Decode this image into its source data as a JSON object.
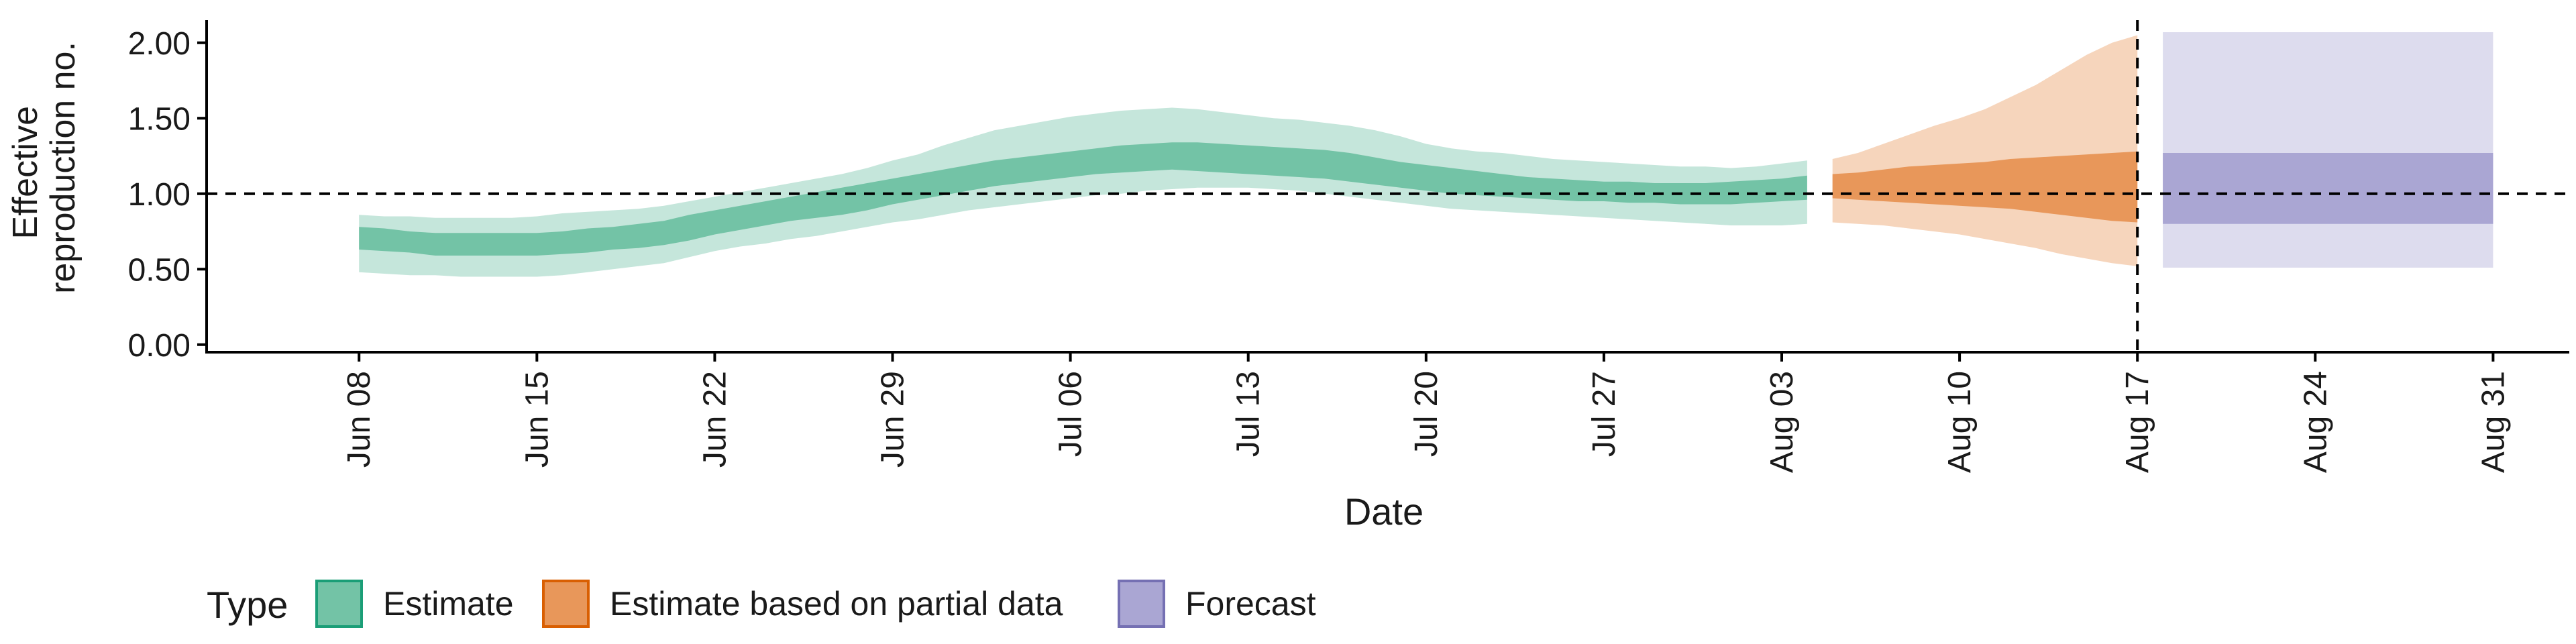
{
  "chart_data": {
    "type": "area",
    "ylabel_lines": [
      "Effective",
      "reproduction no."
    ],
    "xlabel": "Date",
    "ylim": [
      -0.05,
      2.15
    ],
    "yticks": [
      0.0,
      0.5,
      1.0,
      1.5,
      2.0
    ],
    "ytick_labels": [
      "0.00",
      "0.50",
      "1.00",
      "1.50",
      "2.00"
    ],
    "xlim": [
      "2020-06-02",
      "2020-09-03"
    ],
    "xticks": [
      "2020-06-08",
      "2020-06-15",
      "2020-06-22",
      "2020-06-29",
      "2020-07-06",
      "2020-07-13",
      "2020-07-20",
      "2020-07-27",
      "2020-08-03",
      "2020-08-10",
      "2020-08-17",
      "2020-08-24",
      "2020-08-31"
    ],
    "xtick_labels": [
      "Jun 08",
      "Jun 15",
      "Jun 22",
      "Jun 29",
      "Jul 06",
      "Jul 13",
      "Jul 20",
      "Jul 27",
      "Aug 03",
      "Aug 10",
      "Aug 17",
      "Aug 24",
      "Aug 31"
    ],
    "reference_line_y": 1.0,
    "reference_line_x": "2020-08-17",
    "legend": {
      "title": "Type",
      "position": "bottom"
    },
    "colors": {
      "estimate_outer": "#c5e6db",
      "estimate_inner": "#73c3a6",
      "partial_outer": "#f6d5bc",
      "partial_inner": "#e8975a",
      "forecast_outer": "#dddcee",
      "forecast_inner": "#aaa6d3",
      "estimate_key_border": "#1b9e77",
      "partial_key_border": "#d95f02",
      "forecast_key_border": "#7570b3"
    },
    "series": [
      {
        "name": "Estimate",
        "x": [
          "2020-06-08",
          "2020-06-09",
          "2020-06-10",
          "2020-06-11",
          "2020-06-12",
          "2020-06-13",
          "2020-06-14",
          "2020-06-15",
          "2020-06-16",
          "2020-06-17",
          "2020-06-18",
          "2020-06-19",
          "2020-06-20",
          "2020-06-21",
          "2020-06-22",
          "2020-06-23",
          "2020-06-24",
          "2020-06-25",
          "2020-06-26",
          "2020-06-27",
          "2020-06-28",
          "2020-06-29",
          "2020-06-30",
          "2020-07-01",
          "2020-07-02",
          "2020-07-03",
          "2020-07-04",
          "2020-07-05",
          "2020-07-06",
          "2020-07-07",
          "2020-07-08",
          "2020-07-09",
          "2020-07-10",
          "2020-07-11",
          "2020-07-12",
          "2020-07-13",
          "2020-07-14",
          "2020-07-15",
          "2020-07-16",
          "2020-07-17",
          "2020-07-18",
          "2020-07-19",
          "2020-07-20",
          "2020-07-21",
          "2020-07-22",
          "2020-07-23",
          "2020-07-24",
          "2020-07-25",
          "2020-07-26",
          "2020-07-27",
          "2020-07-28",
          "2020-07-29",
          "2020-07-30",
          "2020-07-31",
          "2020-08-01",
          "2020-08-02",
          "2020-08-03",
          "2020-08-04"
        ],
        "lower90": [
          0.48,
          0.47,
          0.46,
          0.46,
          0.45,
          0.45,
          0.45,
          0.45,
          0.46,
          0.48,
          0.5,
          0.52,
          0.54,
          0.58,
          0.62,
          0.65,
          0.67,
          0.7,
          0.72,
          0.75,
          0.78,
          0.81,
          0.83,
          0.86,
          0.89,
          0.91,
          0.93,
          0.95,
          0.97,
          0.99,
          1.0,
          1.02,
          1.03,
          1.04,
          1.04,
          1.04,
          1.03,
          1.02,
          1.0,
          0.98,
          0.96,
          0.94,
          0.92,
          0.9,
          0.89,
          0.88,
          0.87,
          0.86,
          0.85,
          0.84,
          0.83,
          0.82,
          0.81,
          0.8,
          0.79,
          0.79,
          0.79,
          0.8
        ],
        "upper90": [
          0.86,
          0.85,
          0.85,
          0.84,
          0.84,
          0.84,
          0.84,
          0.85,
          0.87,
          0.88,
          0.89,
          0.9,
          0.92,
          0.95,
          0.98,
          1.01,
          1.04,
          1.07,
          1.1,
          1.13,
          1.17,
          1.22,
          1.26,
          1.32,
          1.37,
          1.42,
          1.45,
          1.48,
          1.51,
          1.53,
          1.55,
          1.56,
          1.57,
          1.56,
          1.54,
          1.52,
          1.5,
          1.49,
          1.47,
          1.45,
          1.42,
          1.38,
          1.33,
          1.3,
          1.28,
          1.27,
          1.25,
          1.23,
          1.22,
          1.21,
          1.2,
          1.19,
          1.18,
          1.18,
          1.17,
          1.18,
          1.2,
          1.22
        ],
        "lower50": [
          0.63,
          0.62,
          0.61,
          0.59,
          0.59,
          0.59,
          0.59,
          0.59,
          0.6,
          0.61,
          0.63,
          0.64,
          0.66,
          0.69,
          0.73,
          0.76,
          0.79,
          0.82,
          0.84,
          0.86,
          0.89,
          0.93,
          0.96,
          0.99,
          1.02,
          1.05,
          1.07,
          1.09,
          1.11,
          1.13,
          1.14,
          1.15,
          1.16,
          1.15,
          1.14,
          1.13,
          1.12,
          1.11,
          1.1,
          1.08,
          1.06,
          1.04,
          1.02,
          1.0,
          0.99,
          0.98,
          0.97,
          0.96,
          0.95,
          0.95,
          0.94,
          0.94,
          0.93,
          0.93,
          0.93,
          0.94,
          0.95,
          0.96
        ],
        "upper50": [
          0.78,
          0.77,
          0.75,
          0.74,
          0.74,
          0.74,
          0.74,
          0.74,
          0.75,
          0.77,
          0.78,
          0.8,
          0.82,
          0.86,
          0.89,
          0.92,
          0.95,
          0.98,
          1.01,
          1.04,
          1.07,
          1.1,
          1.13,
          1.16,
          1.19,
          1.22,
          1.24,
          1.26,
          1.28,
          1.3,
          1.32,
          1.33,
          1.34,
          1.34,
          1.33,
          1.32,
          1.31,
          1.3,
          1.29,
          1.27,
          1.24,
          1.21,
          1.19,
          1.17,
          1.15,
          1.13,
          1.11,
          1.1,
          1.09,
          1.08,
          1.08,
          1.07,
          1.07,
          1.07,
          1.08,
          1.09,
          1.1,
          1.12
        ]
      },
      {
        "name": "Estimate based on partial data",
        "x": [
          "2020-08-05",
          "2020-08-06",
          "2020-08-07",
          "2020-08-08",
          "2020-08-09",
          "2020-08-10",
          "2020-08-11",
          "2020-08-12",
          "2020-08-13",
          "2020-08-14",
          "2020-08-15",
          "2020-08-16",
          "2020-08-17"
        ],
        "lower90": [
          0.81,
          0.8,
          0.79,
          0.77,
          0.75,
          0.73,
          0.7,
          0.67,
          0.64,
          0.6,
          0.57,
          0.54,
          0.52
        ],
        "upper90": [
          1.23,
          1.27,
          1.33,
          1.39,
          1.45,
          1.5,
          1.56,
          1.64,
          1.72,
          1.82,
          1.92,
          2.0,
          2.05
        ],
        "lower50": [
          0.97,
          0.96,
          0.95,
          0.94,
          0.93,
          0.92,
          0.91,
          0.9,
          0.88,
          0.86,
          0.84,
          0.82,
          0.81
        ],
        "upper50": [
          1.13,
          1.14,
          1.16,
          1.18,
          1.19,
          1.2,
          1.21,
          1.23,
          1.24,
          1.25,
          1.26,
          1.27,
          1.28
        ]
      },
      {
        "name": "Forecast",
        "x": [
          "2020-08-18",
          "2020-08-31"
        ],
        "lower90": [
          0.51,
          0.51
        ],
        "upper90": [
          2.07,
          2.07
        ],
        "lower50": [
          0.8,
          0.8
        ],
        "upper50": [
          1.27,
          1.27
        ]
      }
    ]
  }
}
